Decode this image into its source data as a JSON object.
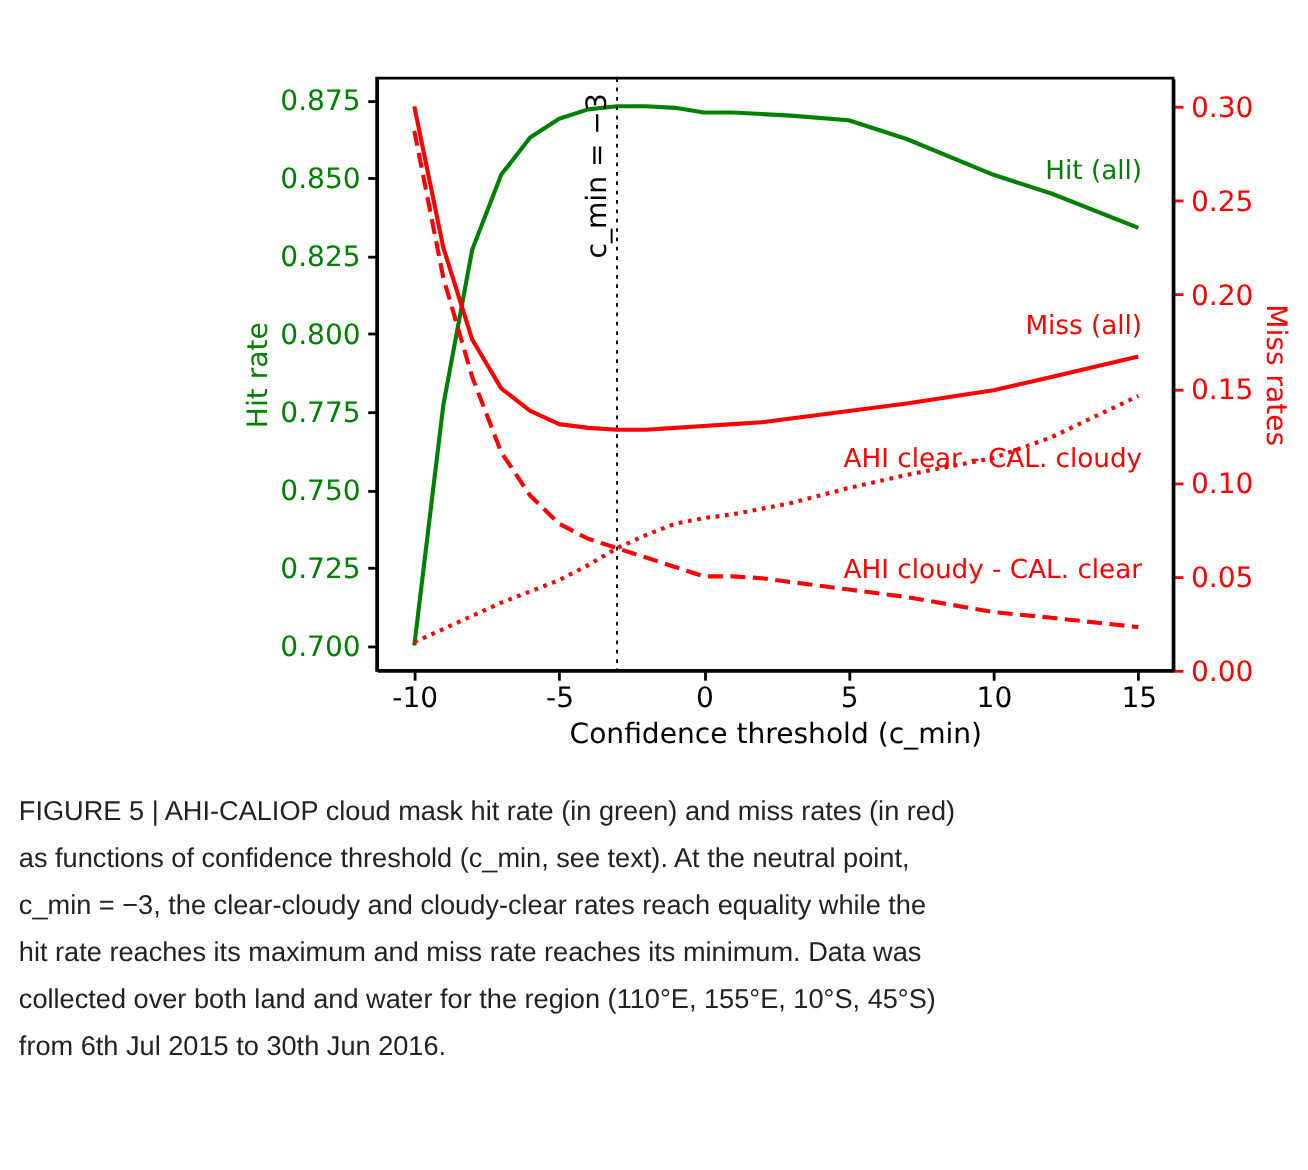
{
  "chart_data": {
    "type": "line",
    "xlabel": "Confidence threshold (c_min)",
    "ylabel": "Hit rate",
    "y2label": "Miss rates",
    "x": [
      -10,
      -9,
      -8,
      -7,
      -6,
      -5,
      -4,
      -3,
      -2,
      -1,
      0,
      1,
      2,
      3,
      5,
      7,
      10,
      12,
      15
    ],
    "series": [
      {
        "name": "Hit (all)",
        "color": "#008000",
        "line_style": "solid",
        "values": [
          0.7,
          0.777,
          0.827,
          0.851,
          0.863,
          0.869,
          0.872,
          0.873,
          0.873,
          0.8725,
          0.871,
          0.871,
          0.8705,
          0.87,
          0.8685,
          0.8625,
          0.851,
          0.845,
          0.834
        ]
      },
      {
        "name": "Miss (all)",
        "color": "#ff0000",
        "axis": "y2",
        "line_style": "solid",
        "values": [
          0.3,
          0.225,
          0.176,
          0.15,
          0.138,
          0.131,
          0.129,
          0.128,
          0.128,
          0.129,
          0.13,
          0.131,
          0.132,
          0.134,
          0.138,
          0.142,
          0.149,
          0.156,
          0.167
        ]
      },
      {
        "name": "AHI clear - CAL. cloudy",
        "color": "#ff0000",
        "axis": "y2",
        "line_style": "dotted",
        "values": [
          0.015,
          0.022,
          0.029,
          0.036,
          0.042,
          0.048,
          0.056,
          0.065,
          0.072,
          0.078,
          0.081,
          0.083,
          0.086,
          0.089,
          0.097,
          0.104,
          0.113,
          0.124,
          0.146
        ]
      },
      {
        "name": "AHI cloudy - CAL. clear",
        "color": "#ff0000",
        "axis": "y2",
        "line_style": "dashed",
        "values": [
          0.287,
          0.209,
          0.156,
          0.116,
          0.093,
          0.078,
          0.07,
          0.065,
          0.06,
          0.055,
          0.05,
          0.05,
          0.049,
          0.047,
          0.043,
          0.039,
          0.031,
          0.028,
          0.023
        ]
      }
    ],
    "xlim": [
      -11.3,
      16.2
    ],
    "xticks": [
      -10,
      -5,
      0,
      5,
      10,
      15
    ],
    "ylim": [
      0.692,
      0.882
    ],
    "yticks": [
      {
        "value": 0.7,
        "label": "0.700"
      },
      {
        "value": 0.725,
        "label": "0.725"
      },
      {
        "value": 0.75,
        "label": "0.750"
      },
      {
        "value": 0.775,
        "label": "0.775"
      },
      {
        "value": 0.8,
        "label": "0.800"
      },
      {
        "value": 0.825,
        "label": "0.825"
      },
      {
        "value": 0.85,
        "label": "0.850"
      },
      {
        "value": 0.875,
        "label": "0.875"
      }
    ],
    "y2lim": [
      0.0,
      0.315
    ],
    "y2ticks": [
      {
        "value": 0.0,
        "label": "0.00"
      },
      {
        "value": 0.05,
        "label": "0.05"
      },
      {
        "value": 0.1,
        "label": "0.10"
      },
      {
        "value": 0.15,
        "label": "0.15"
      },
      {
        "value": 0.2,
        "label": "0.20"
      },
      {
        "value": 0.25,
        "label": "0.25"
      },
      {
        "value": 0.3,
        "label": "0.30"
      }
    ],
    "ref_lines": [
      {
        "axis": "x",
        "value": -3,
        "label": "c_min = −3",
        "color": "#000000",
        "line_style": "dotted"
      }
    ],
    "marker": "none",
    "grid": false,
    "legend": false,
    "annotations": [
      "FIGURE 5 | AHI-CALIOP cloud mask hit rate (in green) and miss rates (in red) as functions of confidence threshold (c_min, see text). At the neutral point, c_min = −3, the clear-cloudy and cloudy-clear rates reach equality while the hit rate reaches its maximum and miss rate reaches its minimum. Data was collected over both land and water for the region (110°E, 155°E, 10°S, 45°S) from 6th Jul 2015 to 30th Jun 2016."
    ]
  }
}
